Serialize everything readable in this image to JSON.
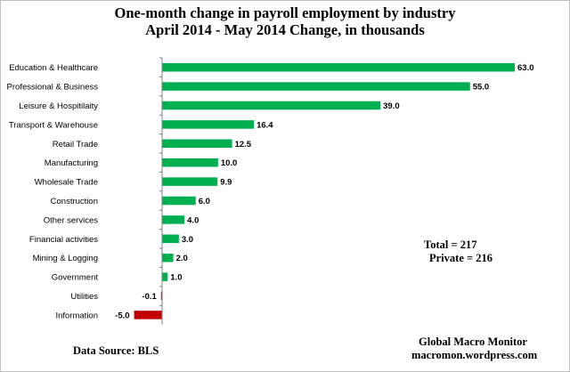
{
  "chart_data": {
    "type": "bar",
    "orientation": "horizontal",
    "title": "One-month  change in payroll  employment  by industry",
    "subtitle": "April   2014 - May 2014  Change, in  thousands",
    "categories": [
      "Education & Healthcare",
      "Professional & Business",
      "Leisure & Hospitilaity",
      "Transport & Warehouse",
      "Retail Trade",
      "Manufacturing",
      "Wholesale Trade",
      "Construction",
      "Other services",
      "Financial activities",
      "Mining & Logging",
      "Government",
      "Utilities",
      "Information"
    ],
    "values": [
      63.0,
      55.0,
      39.0,
      16.4,
      12.5,
      10.0,
      9.9,
      6.0,
      4.0,
      3.0,
      2.0,
      1.0,
      -0.1,
      -5.0
    ],
    "value_labels": [
      "63.0",
      "55.0",
      "39.0",
      "16.4",
      "12.5",
      "10.0",
      "9.9",
      "6.0",
      "4.0",
      "3.0",
      "2.0",
      "1.0",
      "-0.1",
      "-5.0"
    ],
    "colors": {
      "positive": "#00b050",
      "negative": "#c00000"
    },
    "grid": false,
    "legend": "none"
  },
  "annotations": {
    "total": "Total      = 217",
    "private": "Private  = 216",
    "source": "Data Source:  BLS",
    "brand": "Global Macro Monitor",
    "site": "macromon.wordpress.com"
  }
}
